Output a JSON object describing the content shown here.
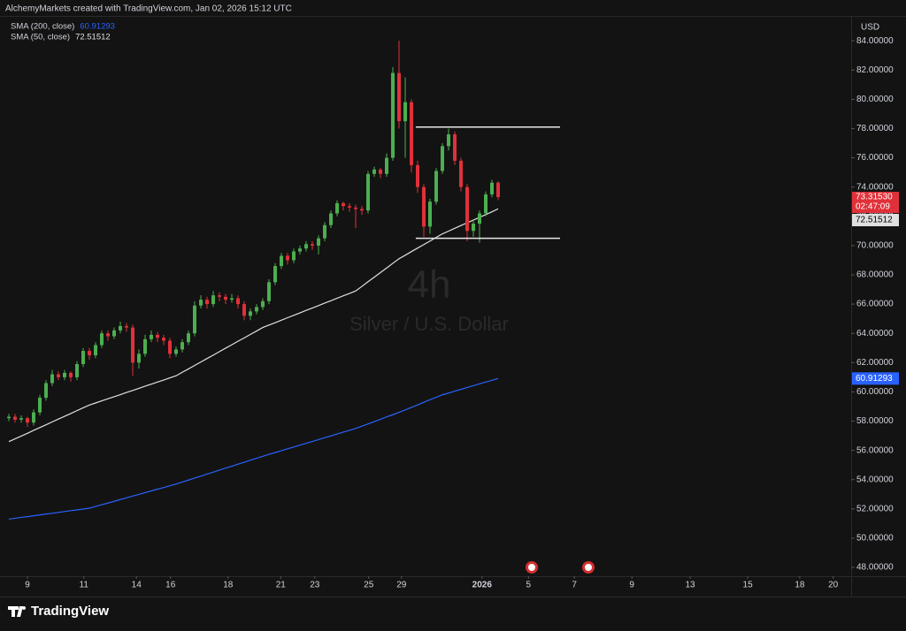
{
  "chart_data": {
    "type": "candlestick",
    "credit": "AlchemyMarkets created with TradingView.com, Jan 02, 2026 15:12 UTC",
    "currency": "USD",
    "watermark_interval": "4h",
    "watermark_symbol": "Silver / U.S. Dollar",
    "brand": "TradingView",
    "up_color": "#4caf50",
    "down_color": "#e0313a",
    "ylim": [
      47.4,
      85.7
    ],
    "xlim": [
      -1.43,
      136
    ],
    "yticks": [
      {
        "value": 48,
        "label": "48.00000"
      },
      {
        "value": 50,
        "label": "50.00000"
      },
      {
        "value": 52,
        "label": "52.00000"
      },
      {
        "value": 54,
        "label": "54.00000"
      },
      {
        "value": 56,
        "label": "56.00000"
      },
      {
        "value": 58,
        "label": "58.00000"
      },
      {
        "value": 60,
        "label": "60.00000"
      },
      {
        "value": 62,
        "label": "62.00000"
      },
      {
        "value": 64,
        "label": "64.00000"
      },
      {
        "value": 66,
        "label": "66.00000"
      },
      {
        "value": 68,
        "label": "68.00000"
      },
      {
        "value": 70,
        "label": "70.00000"
      },
      {
        "value": 72,
        "label": "72.00000"
      },
      {
        "value": 74,
        "label": "74.00000"
      },
      {
        "value": 76,
        "label": "76.00000"
      },
      {
        "value": 78,
        "label": "78.00000"
      },
      {
        "value": 80,
        "label": "80.00000"
      },
      {
        "value": 82,
        "label": "82.00000"
      },
      {
        "value": 84,
        "label": "84.00000"
      }
    ],
    "xticks": [
      {
        "value": 3,
        "label": "9"
      },
      {
        "value": 12.1,
        "label": "11"
      },
      {
        "value": 20.6,
        "label": "14"
      },
      {
        "value": 26.1,
        "label": "16"
      },
      {
        "value": 35.4,
        "label": "18"
      },
      {
        "value": 43.9,
        "label": "21"
      },
      {
        "value": 49.4,
        "label": "23"
      },
      {
        "value": 58.1,
        "label": "25"
      },
      {
        "value": 63.4,
        "label": "29"
      },
      {
        "value": 76.4,
        "label": "2026"
      },
      {
        "value": 83.9,
        "label": "5"
      },
      {
        "value": 91.3,
        "label": "7"
      },
      {
        "value": 100.6,
        "label": "9"
      },
      {
        "value": 110,
        "label": "13"
      },
      {
        "value": 119.3,
        "label": "15"
      },
      {
        "value": 127.7,
        "label": "18"
      },
      {
        "value": 133.1,
        "label": "20"
      }
    ],
    "ohlc": [
      [
        58.2,
        58.5,
        58.0,
        58.3
      ],
      [
        58.3,
        58.5,
        57.9,
        58.1
      ],
      [
        58.1,
        58.4,
        57.9,
        58.2
      ],
      [
        58.2,
        58.3,
        57.6,
        57.9
      ],
      [
        57.9,
        58.8,
        57.7,
        58.6
      ],
      [
        58.6,
        59.8,
        58.4,
        59.6
      ],
      [
        59.6,
        60.8,
        59.4,
        60.6
      ],
      [
        60.6,
        61.5,
        60.4,
        61.2
      ],
      [
        61.2,
        61.4,
        60.8,
        61.0
      ],
      [
        61.0,
        61.5,
        60.8,
        61.3
      ],
      [
        61.3,
        61.4,
        60.7,
        61.0
      ],
      [
        61.0,
        62.1,
        60.8,
        61.9
      ],
      [
        61.9,
        63.0,
        61.7,
        62.8
      ],
      [
        62.8,
        63.0,
        62.2,
        62.5
      ],
      [
        62.5,
        63.4,
        62.3,
        63.2
      ],
      [
        63.2,
        64.2,
        63.0,
        64.0
      ],
      [
        64.0,
        64.2,
        63.5,
        63.8
      ],
      [
        63.8,
        64.4,
        63.6,
        64.2
      ],
      [
        64.2,
        64.8,
        64.0,
        64.5
      ],
      [
        64.5,
        64.7,
        64.1,
        64.4
      ],
      [
        64.4,
        64.6,
        61.1,
        62.0
      ],
      [
        62.0,
        62.9,
        61.6,
        62.6
      ],
      [
        62.6,
        63.9,
        62.4,
        63.6
      ],
      [
        63.6,
        64.2,
        63.4,
        63.9
      ],
      [
        63.9,
        64.1,
        63.4,
        63.7
      ],
      [
        63.7,
        63.9,
        63.2,
        63.5
      ],
      [
        63.5,
        63.7,
        62.3,
        62.6
      ],
      [
        62.6,
        63.1,
        62.4,
        62.9
      ],
      [
        62.9,
        63.6,
        62.7,
        63.4
      ],
      [
        63.4,
        64.2,
        63.2,
        64.0
      ],
      [
        64.0,
        66.2,
        63.8,
        65.9
      ],
      [
        65.9,
        66.6,
        65.7,
        66.3
      ],
      [
        66.3,
        66.5,
        65.7,
        66.0
      ],
      [
        66.0,
        66.9,
        65.8,
        66.6
      ],
      [
        66.6,
        66.8,
        66.2,
        66.5
      ],
      [
        66.5,
        66.7,
        66.0,
        66.3
      ],
      [
        66.3,
        66.7,
        66.1,
        66.4
      ],
      [
        66.4,
        66.6,
        65.7,
        66.0
      ],
      [
        66.0,
        66.2,
        64.9,
        65.2
      ],
      [
        65.2,
        65.7,
        64.9,
        65.5
      ],
      [
        65.5,
        66.0,
        65.3,
        65.8
      ],
      [
        65.8,
        66.4,
        65.6,
        66.2
      ],
      [
        66.2,
        67.7,
        66.0,
        67.5
      ],
      [
        67.5,
        68.8,
        67.3,
        68.6
      ],
      [
        68.6,
        69.5,
        68.4,
        69.3
      ],
      [
        69.3,
        69.5,
        68.7,
        69.0
      ],
      [
        69.0,
        69.8,
        68.8,
        69.6
      ],
      [
        69.6,
        70.0,
        69.4,
        69.8
      ],
      [
        69.8,
        70.3,
        69.6,
        70.1
      ],
      [
        70.1,
        70.3,
        69.7,
        70.0
      ],
      [
        70.0,
        70.7,
        69.4,
        70.5
      ],
      [
        70.5,
        71.6,
        70.3,
        71.4
      ],
      [
        71.4,
        72.4,
        71.2,
        72.2
      ],
      [
        72.2,
        73.1,
        72.0,
        72.9
      ],
      [
        72.9,
        73.0,
        72.4,
        72.7
      ],
      [
        72.7,
        72.9,
        72.3,
        72.6
      ],
      [
        72.6,
        72.8,
        71.2,
        72.5
      ],
      [
        72.5,
        72.7,
        72.1,
        72.4
      ],
      [
        72.4,
        75.1,
        72.2,
        74.9
      ],
      [
        74.9,
        75.4,
        74.7,
        75.2
      ],
      [
        75.2,
        75.3,
        74.6,
        74.9
      ],
      [
        74.9,
        76.3,
        74.7,
        76.0
      ],
      [
        76.0,
        82.2,
        75.8,
        81.8
      ],
      [
        81.8,
        84.0,
        78.0,
        78.5
      ],
      [
        78.5,
        81.5,
        76.0,
        79.8
      ],
      [
        79.8,
        80.0,
        75.0,
        75.5
      ],
      [
        75.5,
        75.8,
        73.6,
        74.0
      ],
      [
        74.0,
        74.2,
        70.6,
        71.3
      ],
      [
        71.3,
        73.2,
        70.8,
        73.0
      ],
      [
        73.0,
        75.3,
        72.8,
        75.1
      ],
      [
        75.1,
        77.0,
        74.9,
        76.8
      ],
      [
        76.8,
        78.0,
        76.5,
        77.6
      ],
      [
        77.6,
        77.8,
        75.5,
        75.8
      ],
      [
        75.8,
        76.0,
        73.7,
        74.0
      ],
      [
        74.0,
        74.2,
        70.3,
        71.0
      ],
      [
        71.0,
        71.8,
        70.6,
        71.5
      ],
      [
        71.5,
        72.4,
        70.2,
        72.2
      ],
      [
        72.2,
        73.7,
        72.0,
        73.5
      ],
      [
        73.5,
        74.5,
        73.3,
        74.3
      ],
      [
        74.3,
        74.4,
        73.1,
        73.3153
      ]
    ],
    "last_price_label": "73.31530",
    "countdown": "02:47:09",
    "levels": [
      78.1,
      70.5
    ],
    "series": [
      {
        "name": "SMA (200, close)",
        "color": "#2962ff",
        "values": [
          51.3,
          51.36,
          51.42,
          51.47,
          51.53,
          51.59,
          51.65,
          51.7,
          51.76,
          51.82,
          51.88,
          51.93,
          51.99,
          52.05,
          52.17,
          52.29,
          52.4,
          52.52,
          52.64,
          52.76,
          52.88,
          52.99,
          53.11,
          53.23,
          53.35,
          53.46,
          53.58,
          53.7,
          53.84,
          53.97,
          54.11,
          54.24,
          54.38,
          54.51,
          54.65,
          54.79,
          54.92,
          55.06,
          55.19,
          55.33,
          55.46,
          55.6,
          55.73,
          55.85,
          55.98,
          56.11,
          56.23,
          56.36,
          56.49,
          56.61,
          56.74,
          56.87,
          56.99,
          57.12,
          57.25,
          57.37,
          57.5,
          57.66,
          57.81,
          57.97,
          58.13,
          58.29,
          58.44,
          58.6,
          58.77,
          58.94,
          59.11,
          59.29,
          59.46,
          59.63,
          59.8,
          59.92,
          60.05,
          60.17,
          60.3,
          60.42,
          60.55,
          60.67,
          60.79,
          60.91293
        ]
      },
      {
        "name": "SMA (50, close)",
        "color": "#e0e0e0",
        "values": [
          56.6,
          56.79,
          56.98,
          57.17,
          57.37,
          57.56,
          57.75,
          57.95,
          58.14,
          58.33,
          58.52,
          58.72,
          58.91,
          59.1,
          59.24,
          59.39,
          59.53,
          59.67,
          59.81,
          59.96,
          60.1,
          60.24,
          60.39,
          60.53,
          60.67,
          60.81,
          60.96,
          61.1,
          61.34,
          61.57,
          61.81,
          62.04,
          62.28,
          62.51,
          62.75,
          62.99,
          63.22,
          63.46,
          63.69,
          63.93,
          64.16,
          64.4,
          64.57,
          64.73,
          64.9,
          65.07,
          65.23,
          65.4,
          65.57,
          65.73,
          65.9,
          66.07,
          66.23,
          66.4,
          66.57,
          66.73,
          66.9,
          67.21,
          67.53,
          67.84,
          68.16,
          68.47,
          68.79,
          69.1,
          69.34,
          69.59,
          69.83,
          70.07,
          70.31,
          70.56,
          70.8,
          70.99,
          71.18,
          71.37,
          71.56,
          71.74,
          71.93,
          72.12,
          72.31,
          72.51512
        ]
      }
    ]
  }
}
